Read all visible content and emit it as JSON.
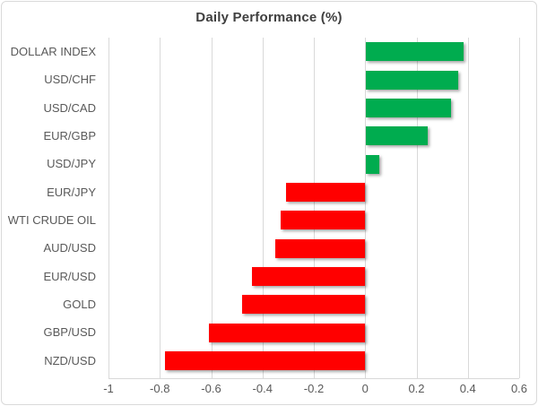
{
  "chart_data": {
    "type": "bar",
    "orientation": "horizontal",
    "title": "Daily Performance (%)",
    "categories": [
      "DOLLAR INDEX",
      "USD/CHF",
      "USD/CAD",
      "EUR/GBP",
      "USD/JPY",
      "EUR/JPY",
      "WTI CRUDE OIL",
      "AUD/USD",
      "EUR/USD",
      "GOLD",
      "GBP/USD",
      "NZD/USD"
    ],
    "values": [
      0.38,
      0.36,
      0.33,
      0.24,
      0.05,
      -0.31,
      -0.33,
      -0.35,
      -0.44,
      -0.48,
      -0.61,
      -0.78
    ],
    "xlabel": "",
    "ylabel": "",
    "xlim": [
      -1,
      0.6
    ],
    "xticks": [
      -1,
      -0.8,
      -0.6,
      -0.4,
      -0.2,
      0,
      0.2,
      0.4,
      0.6
    ],
    "xtick_labels": [
      "-1",
      "-0.8",
      "-0.6",
      "-0.4",
      "-0.2",
      "0",
      "0.2",
      "0.4",
      "0.6"
    ],
    "grid": true,
    "legend": false,
    "positive_color": "#00AC4F",
    "negative_color": "#FF0000"
  }
}
